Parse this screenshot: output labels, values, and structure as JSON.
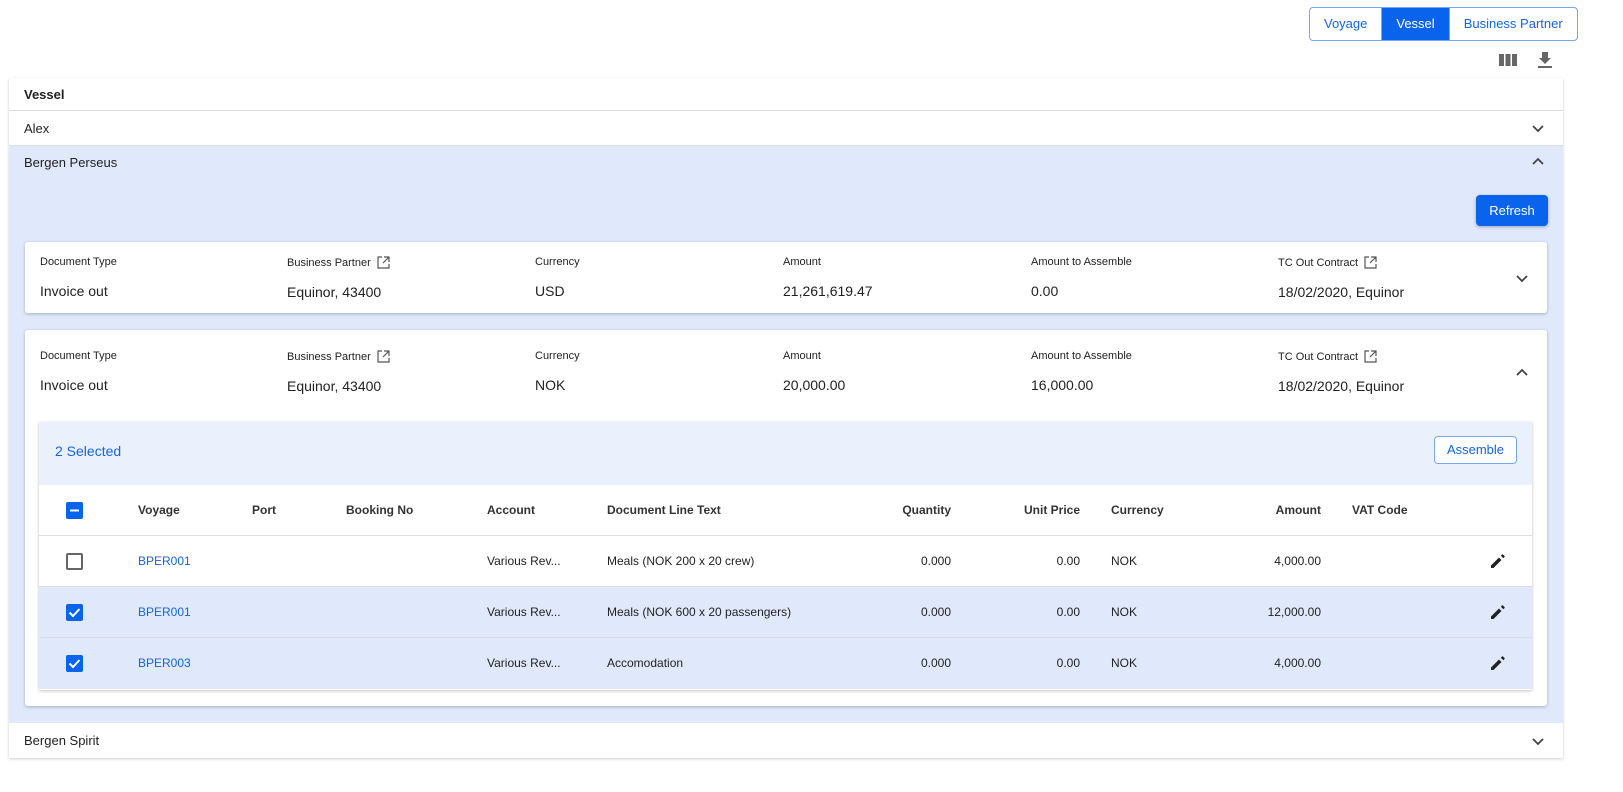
{
  "view_toggle": {
    "options": [
      "Voyage",
      "Vessel",
      "Business Partner"
    ],
    "active": "Vessel"
  },
  "toolbar": {
    "columns_icon": "view-column-icon",
    "download_icon": "download-icon"
  },
  "vessel_list": {
    "header": "Vessel",
    "vessels": [
      {
        "name": "Alex",
        "expanded": false
      },
      {
        "name": "Bergen Perseus",
        "expanded": true
      },
      {
        "name": "Bergen Spirit",
        "expanded": false
      }
    ],
    "refresh_label": "Refresh"
  },
  "field_labels": {
    "document_type": "Document Type",
    "business_partner": "Business Partner",
    "currency": "Currency",
    "amount": "Amount",
    "amount_to_assemble": "Amount to Assemble",
    "tc_out_contract": "TC Out Contract"
  },
  "documents": [
    {
      "document_type": "Invoice out",
      "business_partner": "Equinor, 43400",
      "currency": "USD",
      "amount": "21,261,619.47",
      "amount_to_assemble": "0.00",
      "tc_out_contract": "18/02/2020, Equinor",
      "expanded": false
    },
    {
      "document_type": "Invoice out",
      "business_partner": "Equinor, 43400",
      "currency": "NOK",
      "amount": "20,000.00",
      "amount_to_assemble": "16,000.00",
      "tc_out_contract": "18/02/2020, Equinor",
      "expanded": true
    }
  ],
  "lines_table": {
    "selected_text": "2 Selected",
    "assemble_label": "Assemble",
    "columns": [
      "Voyage",
      "Port",
      "Booking No",
      "Account",
      "Document Line Text",
      "Quantity",
      "Unit Price",
      "Currency",
      "Amount",
      "VAT Code"
    ],
    "rows": [
      {
        "selected": false,
        "voyage": "BPER001",
        "port": "",
        "booking_no": "",
        "account": "Various Rev...",
        "text": "Meals (NOK 200 x 20 crew)",
        "quantity": "0.000",
        "unit_price": "0.00",
        "currency": "NOK",
        "amount": "4,000.00",
        "vat_code": ""
      },
      {
        "selected": true,
        "voyage": "BPER001",
        "port": "",
        "booking_no": "",
        "account": "Various Rev...",
        "text": "Meals (NOK 600 x 20 passengers)",
        "quantity": "0.000",
        "unit_price": "0.00",
        "currency": "NOK",
        "amount": "12,000.00",
        "vat_code": ""
      },
      {
        "selected": true,
        "voyage": "BPER003",
        "port": "",
        "booking_no": "",
        "account": "Various Rev...",
        "text": "Accomodation",
        "quantity": "0.000",
        "unit_price": "0.00",
        "currency": "NOK",
        "amount": "4,000.00",
        "vat_code": ""
      }
    ]
  },
  "colors": {
    "primary": "#0a63ec",
    "expanded_bg": "#dfe9fb",
    "link": "#1565e0"
  }
}
